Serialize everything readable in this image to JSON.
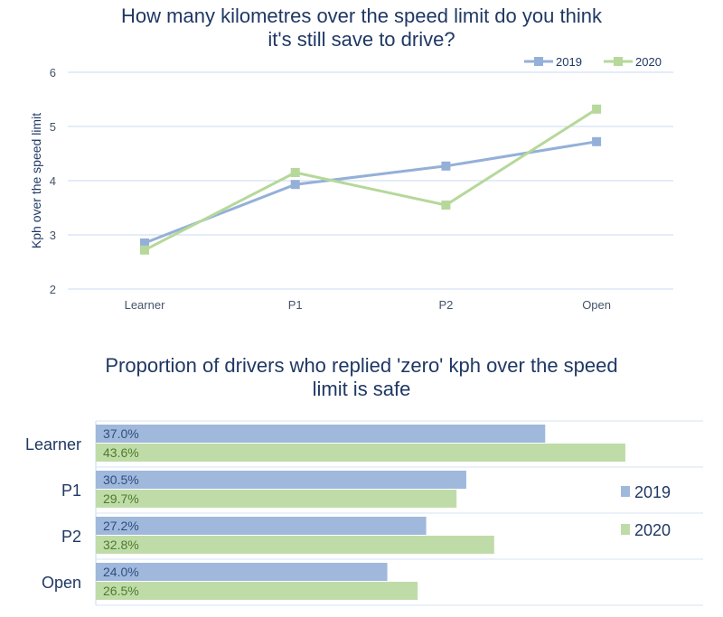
{
  "chart_data": [
    {
      "type": "line",
      "title_lines": [
        "How many kilometres over the speed limit do you think",
        "it's still save to drive?"
      ],
      "xlabel": "",
      "ylabel": "Kph over the speed limit",
      "categories": [
        "Learner",
        "P1",
        "P2",
        "Open"
      ],
      "ylim": [
        2,
        6
      ],
      "yticks": [
        "2",
        "3",
        "4",
        "5",
        "6"
      ],
      "grid": true,
      "legend": "top-right",
      "series": [
        {
          "name": "2019",
          "color": "#94b0d8",
          "values": [
            2.85,
            3.93,
            4.27,
            4.72
          ]
        },
        {
          "name": "2020",
          "color": "#b6d89a",
          "values": [
            2.72,
            4.15,
            3.55,
            5.32
          ]
        }
      ]
    },
    {
      "type": "bar",
      "orientation": "horizontal",
      "title_lines": [
        "Proportion of drivers who replied 'zero' kph over the speed",
        "limit is safe"
      ],
      "categories": [
        "Learner",
        "P1",
        "P2",
        "Open"
      ],
      "legend": "right",
      "series": [
        {
          "name": "2019",
          "color": "#9fb8dc",
          "values": [
            37.0,
            30.5,
            27.2,
            24.0
          ],
          "labels": [
            "37.0%",
            "30.5%",
            "27.2%",
            "24.0%"
          ],
          "label_color": "#2f4f7f"
        },
        {
          "name": "2020",
          "color": "#bfdca8",
          "values": [
            43.6,
            29.7,
            32.8,
            26.5
          ],
          "labels": [
            "43.6%",
            "29.7%",
            "32.8%",
            "26.5%"
          ],
          "label_color": "#4e7a2c"
        }
      ]
    }
  ]
}
